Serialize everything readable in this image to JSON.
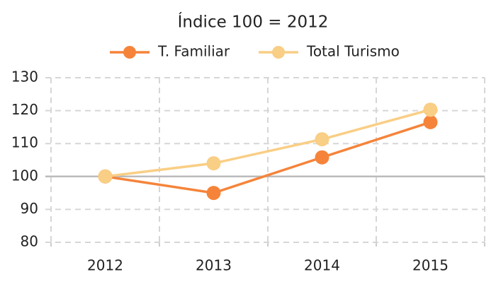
{
  "chart_data": {
    "type": "line",
    "title": "Índice 100 = 2012",
    "categories": [
      "2012",
      "2013",
      "2014",
      "2015"
    ],
    "series": [
      {
        "name": "T. Familiar",
        "color": "#f5843a",
        "values": [
          100,
          95,
          105.8,
          116.5
        ]
      },
      {
        "name": "Total Turismo",
        "color": "#f9ce85",
        "values": [
          100,
          104,
          111.3,
          120.3
        ]
      }
    ],
    "ylim": [
      80,
      130
    ],
    "yticks": [
      80,
      90,
      100,
      110,
      120,
      130
    ],
    "grid": true,
    "reference_line": 100,
    "legend": "top"
  }
}
